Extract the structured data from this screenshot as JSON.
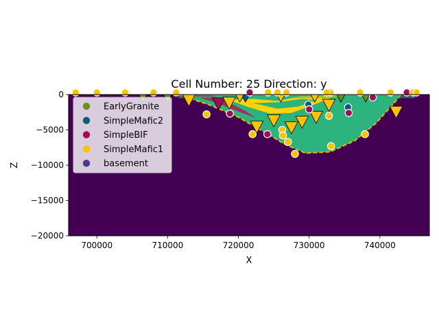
{
  "chart_data": {
    "type": "scatter",
    "title": "Cell Number: 25 Direction: y",
    "xlabel": "X",
    "ylabel": "Z",
    "xlim": [
      696000,
      747000
    ],
    "ylim": [
      -20000,
      0
    ],
    "x_ticks": [
      700000,
      710000,
      720000,
      730000,
      740000
    ],
    "y_ticks": [
      0,
      -5000,
      -10000,
      -15000,
      -20000
    ],
    "x_tick_labels": [
      "700000",
      "710000",
      "720000",
      "730000",
      "740000"
    ],
    "y_tick_labels": [
      "0",
      "−5000",
      "−10000",
      "−15000",
      "−20000"
    ],
    "grid": false,
    "legend_position": "upper-left",
    "legend": [
      {
        "label": "EarlyGranite",
        "color": "#6b8e23"
      },
      {
        "label": "SimpleMafic2",
        "color": "#0f5a7a"
      },
      {
        "label": "SimpleBIF",
        "color": "#9c0f52"
      },
      {
        "label": "SimpleMafic1",
        "color": "#ffc200"
      },
      {
        "label": "basement",
        "color": "#473d8b"
      }
    ],
    "background_unit_color": "#440154",
    "basin_fill_color": "#2db37d",
    "basin_rim_color": "#e8b800",
    "inner_fold_color": "#ffd400",
    "interface_points": [
      {
        "x": 697000,
        "y": 300,
        "unit": "SimpleMafic1"
      },
      {
        "x": 700000,
        "y": 300,
        "unit": "SimpleMafic1"
      },
      {
        "x": 704000,
        "y": 300,
        "unit": "SimpleMafic1"
      },
      {
        "x": 708000,
        "y": 300,
        "unit": "SimpleMafic1"
      },
      {
        "x": 711200,
        "y": 300,
        "unit": "SimpleMafic1"
      },
      {
        "x": 715500,
        "y": -2800,
        "unit": "SimpleMafic1"
      },
      {
        "x": 718800,
        "y": -2700,
        "unit": "SimpleBIF"
      },
      {
        "x": 722000,
        "y": -5600,
        "unit": "SimpleMafic1"
      },
      {
        "x": 724100,
        "y": -5600,
        "unit": "SimpleBIF"
      },
      {
        "x": 726200,
        "y": -5000,
        "unit": "SimpleMafic1"
      },
      {
        "x": 726300,
        "y": -5800,
        "unit": "SimpleMafic1"
      },
      {
        "x": 727000,
        "y": -6700,
        "unit": "SimpleMafic1"
      },
      {
        "x": 728000,
        "y": -8400,
        "unit": "SimpleMafic1"
      },
      {
        "x": 729900,
        "y": -1400,
        "unit": "SimpleMafic2"
      },
      {
        "x": 730000,
        "y": -2100,
        "unit": "SimpleBIF"
      },
      {
        "x": 732800,
        "y": -3000,
        "unit": "SimpleMafic1"
      },
      {
        "x": 733100,
        "y": -7300,
        "unit": "SimpleMafic1"
      },
      {
        "x": 735500,
        "y": -1800,
        "unit": "SimpleMafic2"
      },
      {
        "x": 735600,
        "y": -2600,
        "unit": "SimpleBIF"
      },
      {
        "x": 737900,
        "y": -5600,
        "unit": "SimpleMafic1"
      },
      {
        "x": 739000,
        "y": -400,
        "unit": "SimpleBIF"
      },
      {
        "x": 741500,
        "y": 300,
        "unit": "SimpleMafic1"
      },
      {
        "x": 743800,
        "y": 300,
        "unit": "SimpleBIF"
      },
      {
        "x": 744700,
        "y": 300,
        "unit": "SimpleMafic1"
      },
      {
        "x": 745200,
        "y": 300,
        "unit": "SimpleMafic1"
      },
      {
        "x": 721600,
        "y": 300,
        "unit": "SimpleBIF"
      },
      {
        "x": 724200,
        "y": 300,
        "unit": "SimpleMafic1"
      },
      {
        "x": 725500,
        "y": 300,
        "unit": "SimpleMafic1"
      },
      {
        "x": 726800,
        "y": 300,
        "unit": "SimpleMafic1"
      },
      {
        "x": 733000,
        "y": 300,
        "unit": "SimpleMafic1"
      },
      {
        "x": 737200,
        "y": 300,
        "unit": "SimpleMafic1"
      },
      {
        "x": 732500,
        "y": 300,
        "unit": "SimpleMafic1"
      }
    ],
    "orientations": [
      {
        "x": 713000,
        "y": -600,
        "unit": "SimpleMafic1"
      },
      {
        "x": 717200,
        "y": -1100,
        "unit": "SimpleBIF"
      },
      {
        "x": 718700,
        "y": -1000,
        "unit": "SimpleMafic1"
      },
      {
        "x": 722600,
        "y": -4400,
        "unit": "SimpleMafic1"
      },
      {
        "x": 725000,
        "y": -3500,
        "unit": "SimpleMafic1"
      },
      {
        "x": 727500,
        "y": -4500,
        "unit": "SimpleMafic1"
      },
      {
        "x": 729000,
        "y": -3700,
        "unit": "SimpleMafic1"
      },
      {
        "x": 731000,
        "y": -3000,
        "unit": "SimpleMafic1"
      },
      {
        "x": 732800,
        "y": -1300,
        "unit": "SimpleMafic1"
      },
      {
        "x": 742300,
        "y": -2300,
        "unit": "SimpleMafic1"
      },
      {
        "x": 721000,
        "y": 0,
        "unit": "SimpleMafic2"
      },
      {
        "x": 726000,
        "y": 0,
        "unit": "SimpleMafic1"
      },
      {
        "x": 734500,
        "y": 0,
        "unit": "EarlyGranite"
      },
      {
        "x": 720200,
        "y": 0,
        "unit": "SimpleMafic1"
      },
      {
        "x": 730800,
        "y": 0,
        "unit": "SimpleMafic1"
      },
      {
        "x": 738000,
        "y": 0,
        "unit": "EarlyGranite"
      },
      {
        "x": 710000,
        "y": 0,
        "unit": "EarlyGranite"
      },
      {
        "x": 706500,
        "y": 0,
        "unit": "EarlyGranite"
      }
    ]
  }
}
